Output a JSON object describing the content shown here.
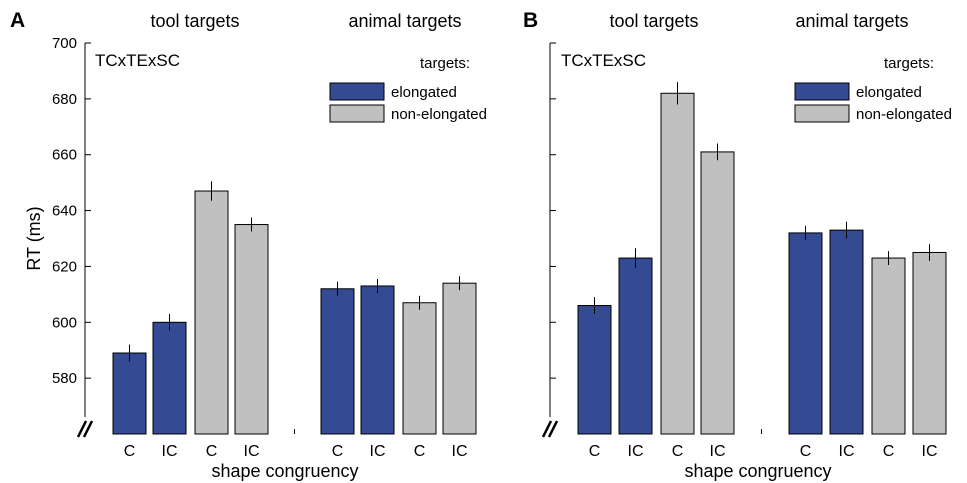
{
  "chart_data": [
    {
      "type": "bar",
      "panel_letter": "A",
      "group_titles": [
        "tool targets",
        "animal targets"
      ],
      "inset_label": "TCxTExSC",
      "ylabel": "RT (ms)",
      "xlabel": "shape congruency",
      "ylim": [
        560,
        700
      ],
      "yticks": [
        580,
        600,
        620,
        640,
        660,
        680,
        700
      ],
      "axis_break": true,
      "legend": {
        "title": "targets:",
        "placement": "top-right",
        "entries": [
          "elongated",
          "non-elongated"
        ]
      },
      "colors": {
        "elongated": "#344a92",
        "non-elongated": "#c0c0c0"
      },
      "categories": [
        "C",
        "IC",
        "C",
        "IC",
        "C",
        "IC",
        "C",
        "IC"
      ],
      "groups": [
        "tool targets",
        "tool targets",
        "tool targets",
        "tool targets",
        "animal targets",
        "animal targets",
        "animal targets",
        "animal targets"
      ],
      "bar_series": [
        "elongated",
        "elongated",
        "non-elongated",
        "non-elongated",
        "elongated",
        "elongated",
        "non-elongated",
        "non-elongated"
      ],
      "values": [
        589,
        600,
        647,
        635,
        612,
        613,
        607,
        614
      ],
      "errors": [
        3,
        3,
        3.5,
        2.5,
        2.5,
        2.5,
        2.5,
        2.5
      ]
    },
    {
      "type": "bar",
      "panel_letter": "B",
      "group_titles": [
        "tool targets",
        "animal targets"
      ],
      "inset_label": "TCxTExSC",
      "ylabel": "",
      "xlabel": "shape congruency",
      "ylim": [
        560,
        700
      ],
      "yticks": [],
      "axis_break": true,
      "legend": {
        "title": "targets:",
        "placement": "top-right",
        "entries": [
          "elongated",
          "non-elongated"
        ]
      },
      "colors": {
        "elongated": "#344a92",
        "non-elongated": "#c0c0c0"
      },
      "categories": [
        "C",
        "IC",
        "C",
        "IC",
        "C",
        "IC",
        "C",
        "IC"
      ],
      "groups": [
        "tool targets",
        "tool targets",
        "tool targets",
        "tool targets",
        "animal targets",
        "animal targets",
        "animal targets",
        "animal targets"
      ],
      "bar_series": [
        "elongated",
        "elongated",
        "non-elongated",
        "non-elongated",
        "elongated",
        "elongated",
        "non-elongated",
        "non-elongated"
      ],
      "values": [
        606,
        623,
        682,
        661,
        632,
        633,
        623,
        625
      ],
      "errors": [
        3,
        3.5,
        4,
        3,
        2.5,
        3,
        2.5,
        3
      ]
    }
  ]
}
